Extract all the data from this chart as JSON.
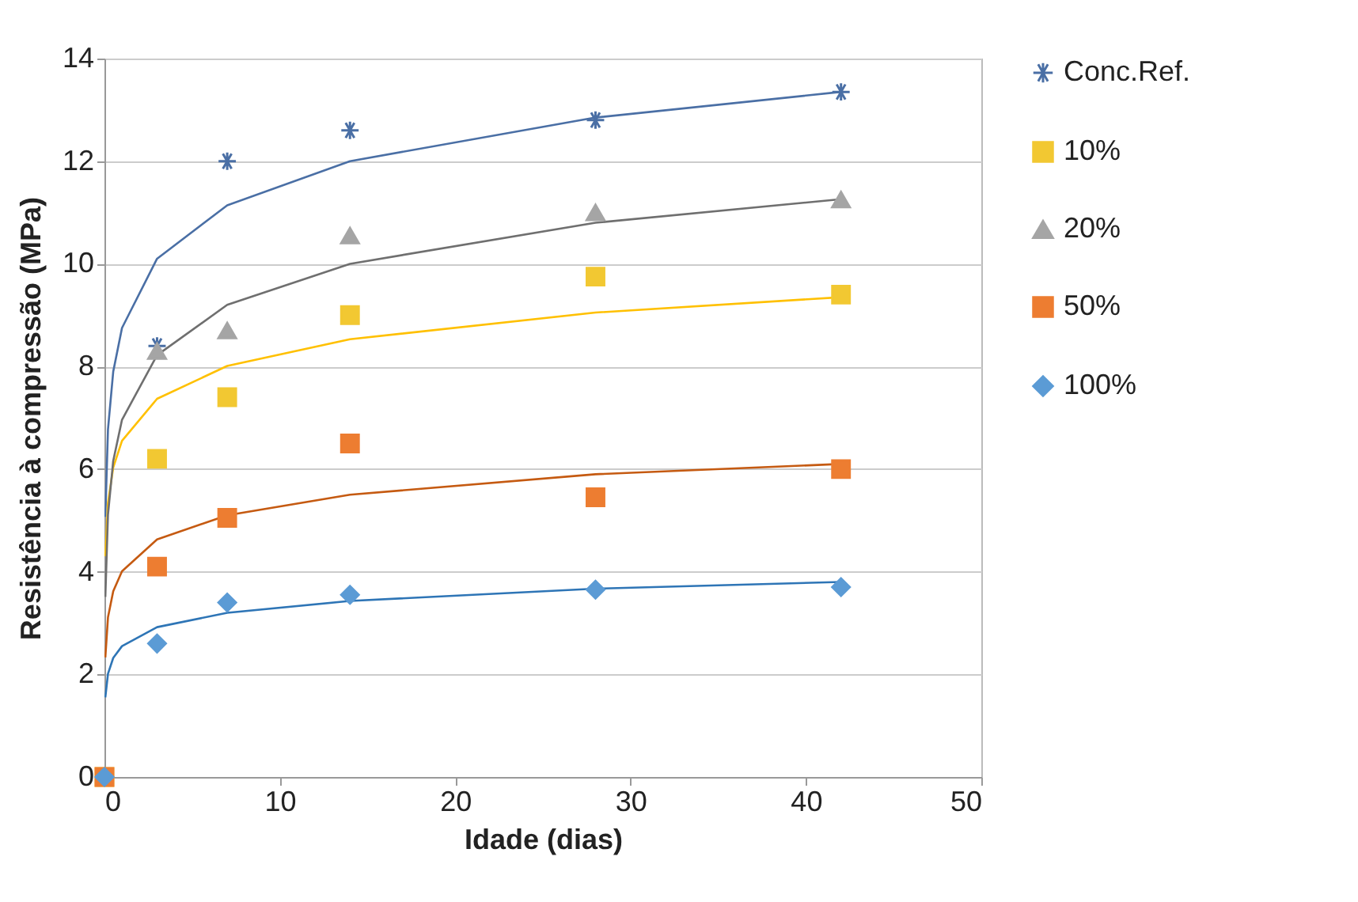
{
  "chart_data": {
    "type": "scatter",
    "xlabel": "Idade (dias)",
    "ylabel": "Resistência à compressão (MPa)",
    "x": [
      0,
      3,
      7,
      14,
      28,
      42
    ],
    "xlim": [
      0,
      50
    ],
    "xticks": [
      0,
      10,
      20,
      30,
      40,
      50
    ],
    "ylim": [
      0,
      14
    ],
    "yticks": [
      0,
      2,
      4,
      6,
      8,
      10,
      12,
      14
    ],
    "grid": "y",
    "legend": "right",
    "series": [
      {
        "name": "Conc.Ref.",
        "color": "#4a6fa5",
        "marker": "cross",
        "values": [
          null,
          8.4,
          12.0,
          12.6,
          12.8,
          13.35
        ]
      },
      {
        "name": "10%",
        "color": "#f2c832",
        "marker": "square",
        "values": [
          0,
          6.2,
          7.4,
          9.0,
          9.75,
          9.4
        ]
      },
      {
        "name": "20%",
        "color": "#a5a5a5",
        "marker": "triangle",
        "values": [
          null,
          8.3,
          8.7,
          10.55,
          11.0,
          11.25
        ]
      },
      {
        "name": "50%",
        "color": "#ed7d31",
        "marker": "square",
        "values": [
          0,
          4.1,
          5.05,
          6.5,
          5.45,
          6.0
        ]
      },
      {
        "name": "100%",
        "color": "#5b9bd5",
        "marker": "diamond",
        "values": [
          0,
          2.6,
          3.4,
          3.55,
          3.65,
          3.7
        ]
      },
      {
        "type": "line",
        "color": "#4a6fa5",
        "x": [
          0.05,
          0.2,
          0.5,
          1,
          3,
          7,
          14,
          28,
          42
        ],
        "values": [
          5.07,
          6.77,
          7.9,
          8.75,
          10.1,
          11.14,
          12.0,
          12.85,
          13.35
        ]
      },
      {
        "type": "line",
        "color": "#ffc000",
        "x": [
          0.05,
          0.2,
          0.5,
          1,
          3,
          7,
          14,
          28,
          42
        ],
        "values": [
          4.3,
          5.34,
          6.03,
          6.55,
          7.37,
          8.01,
          8.53,
          9.05,
          9.35
        ]
      },
      {
        "type": "line",
        "color": "#6f6f6f",
        "x": [
          0.05,
          0.2,
          0.5,
          1,
          3,
          7,
          14,
          28,
          42
        ],
        "values": [
          3.51,
          5.11,
          6.16,
          6.96,
          8.22,
          9.2,
          10.0,
          10.8,
          11.26
        ]
      },
      {
        "type": "line",
        "color": "#c55a11",
        "x": [
          0.05,
          0.2,
          0.5,
          1,
          3,
          7,
          14,
          28,
          42
        ],
        "values": [
          2.33,
          3.11,
          3.62,
          4.01,
          4.63,
          5.1,
          5.5,
          5.9,
          6.1
        ]
      },
      {
        "type": "line",
        "color": "#2e75b6",
        "x": [
          0.05,
          0.2,
          0.5,
          1,
          3,
          7,
          14,
          28,
          42
        ],
        "values": [
          1.55,
          2.01,
          2.32,
          2.55,
          2.92,
          3.2,
          3.43,
          3.67,
          3.8
        ]
      }
    ]
  }
}
